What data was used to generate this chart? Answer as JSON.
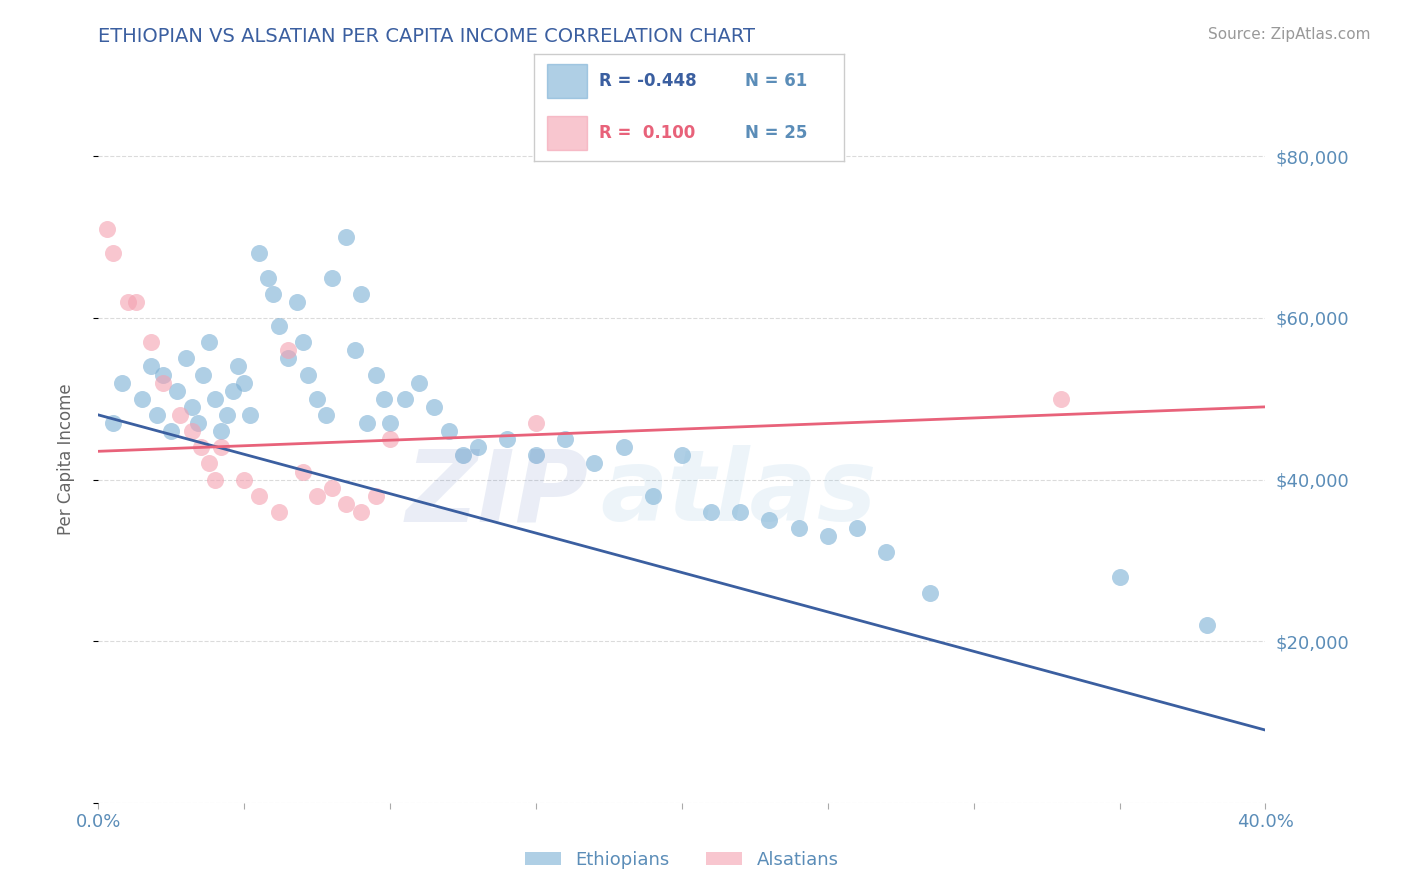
{
  "title": "ETHIOPIAN VS ALSATIAN PER CAPITA INCOME CORRELATION CHART",
  "source_text": "Source: ZipAtlas.com",
  "ylabel": "Per Capita Income",
  "xlim": [
    0.0,
    0.4
  ],
  "ylim": [
    0,
    85000
  ],
  "yticks": [
    0,
    20000,
    40000,
    60000,
    80000
  ],
  "ytick_labels": [
    "",
    "$20,000",
    "$40,000",
    "$60,000",
    "$80,000"
  ],
  "xticks": [
    0.0,
    0.05,
    0.1,
    0.15,
    0.2,
    0.25,
    0.3,
    0.35,
    0.4
  ],
  "xtick_labels_shown": [
    "0.0%",
    "",
    "",
    "",
    "",
    "",
    "",
    "",
    "40.0%"
  ],
  "blue_color": "#7BAFD4",
  "pink_color": "#F4A0B0",
  "line_blue": "#3B5FA0",
  "line_pink": "#E8627A",
  "title_color": "#3B5FA0",
  "axis_color": "#5B8DB8",
  "legend_R_blue": "-0.448",
  "legend_N_blue": "61",
  "legend_R_pink": "0.100",
  "legend_N_pink": "25",
  "legend_label_blue": "Ethiopians",
  "legend_label_pink": "Alsatians",
  "blue_x": [
    0.005,
    0.008,
    0.015,
    0.018,
    0.02,
    0.022,
    0.025,
    0.027,
    0.03,
    0.032,
    0.034,
    0.036,
    0.038,
    0.04,
    0.042,
    0.044,
    0.046,
    0.048,
    0.05,
    0.052,
    0.055,
    0.058,
    0.06,
    0.062,
    0.065,
    0.068,
    0.07,
    0.072,
    0.075,
    0.078,
    0.08,
    0.085,
    0.088,
    0.09,
    0.092,
    0.095,
    0.098,
    0.1,
    0.105,
    0.11,
    0.115,
    0.12,
    0.125,
    0.13,
    0.14,
    0.15,
    0.16,
    0.17,
    0.18,
    0.19,
    0.2,
    0.21,
    0.22,
    0.23,
    0.24,
    0.25,
    0.26,
    0.27,
    0.285,
    0.35,
    0.38
  ],
  "blue_y": [
    47000,
    52000,
    50000,
    54000,
    48000,
    53000,
    46000,
    51000,
    55000,
    49000,
    47000,
    53000,
    57000,
    50000,
    46000,
    48000,
    51000,
    54000,
    52000,
    48000,
    68000,
    65000,
    63000,
    59000,
    55000,
    62000,
    57000,
    53000,
    50000,
    48000,
    65000,
    70000,
    56000,
    63000,
    47000,
    53000,
    50000,
    47000,
    50000,
    52000,
    49000,
    46000,
    43000,
    44000,
    45000,
    43000,
    45000,
    42000,
    44000,
    38000,
    43000,
    36000,
    36000,
    35000,
    34000,
    33000,
    34000,
    31000,
    26000,
    28000,
    22000
  ],
  "pink_x": [
    0.003,
    0.005,
    0.01,
    0.013,
    0.018,
    0.022,
    0.028,
    0.032,
    0.035,
    0.038,
    0.04,
    0.042,
    0.05,
    0.055,
    0.062,
    0.065,
    0.07,
    0.075,
    0.08,
    0.085,
    0.09,
    0.095,
    0.1,
    0.15,
    0.33
  ],
  "pink_y": [
    71000,
    68000,
    62000,
    62000,
    57000,
    52000,
    48000,
    46000,
    44000,
    42000,
    40000,
    44000,
    40000,
    38000,
    36000,
    56000,
    41000,
    38000,
    39000,
    37000,
    36000,
    38000,
    45000,
    47000,
    50000
  ],
  "blue_trend_x": [
    0.0,
    0.4
  ],
  "blue_trend_y": [
    48000,
    9000
  ],
  "pink_trend_x": [
    0.0,
    0.4
  ],
  "pink_trend_y": [
    43500,
    49000
  ],
  "figsize": [
    14.06,
    8.92
  ],
  "dpi": 100
}
